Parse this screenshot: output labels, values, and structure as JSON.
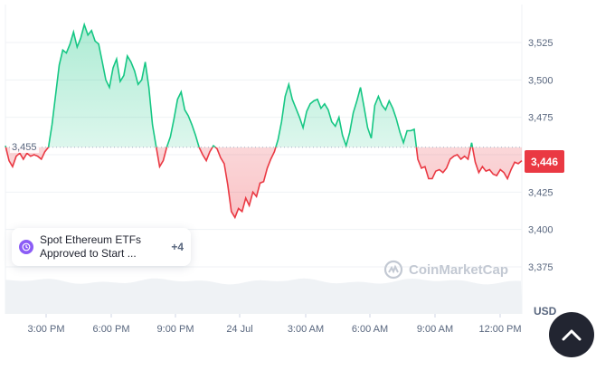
{
  "chart_data": {
    "type": "line",
    "title": "",
    "xlabel": "",
    "ylabel": "",
    "currency": "USD",
    "ylim": [
      3365,
      3550
    ],
    "yticks": [
      3375,
      3400,
      3425,
      3450,
      3475,
      3500,
      3525
    ],
    "ytick_labels": [
      "3,375",
      "3,400",
      "3,425",
      "3,450",
      "3,475",
      "3,500",
      "3,525"
    ],
    "xticks": [
      "3:00 PM",
      "6:00 PM",
      "9:00 PM",
      "24 Jul",
      "3:00 AM",
      "6:00 AM",
      "9:00 AM",
      "12:00 PM"
    ],
    "reference_price": 3455,
    "reference_label": "3,455",
    "current_price_label": "3,446",
    "series": [
      {
        "values": [
          3456,
          3446,
          3442,
          3449,
          3451,
          3447,
          3451,
          3449,
          3450,
          3449,
          3447,
          3452,
          3455,
          3470,
          3490,
          3510,
          3520,
          3518,
          3524,
          3532,
          3522,
          3528,
          3537,
          3530,
          3533,
          3526,
          3524,
          3512,
          3500,
          3495,
          3508,
          3514,
          3499,
          3503,
          3516,
          3512,
          3506,
          3497,
          3500,
          3512,
          3495,
          3470,
          3456,
          3442,
          3446,
          3455,
          3462,
          3474,
          3487,
          3492,
          3480,
          3476,
          3470,
          3463,
          3455,
          3450,
          3446,
          3452,
          3456,
          3454,
          3448,
          3444,
          3430,
          3412,
          3408,
          3414,
          3412,
          3421,
          3416,
          3425,
          3422,
          3431,
          3432,
          3441,
          3447,
          3452,
          3460,
          3472,
          3489,
          3497,
          3487,
          3481,
          3475,
          3468,
          3479,
          3484,
          3486,
          3487,
          3481,
          3484,
          3480,
          3472,
          3469,
          3475,
          3463,
          3456,
          3465,
          3478,
          3486,
          3495,
          3482,
          3468,
          3461,
          3483,
          3489,
          3483,
          3480,
          3486,
          3481,
          3474,
          3465,
          3458,
          3466,
          3466,
          3467,
          3447,
          3441,
          3442,
          3434,
          3434,
          3439,
          3440,
          3438,
          3441,
          3447,
          3449,
          3450,
          3447,
          3449,
          3447,
          3458,
          3445,
          3438,
          3442,
          3439,
          3440,
          3437,
          3436,
          3440,
          3438,
          3434,
          3440,
          3445,
          3444,
          3446
        ]
      }
    ],
    "grid": true,
    "legend": "none"
  },
  "news": {
    "text": "Spot Ethereum ETFs Approved to Start ...",
    "more": "+4",
    "icon": "clock-history-icon"
  },
  "watermark": "CoinMarketCap",
  "colors": {
    "up": "#16c784",
    "down": "#ea3943",
    "badge": "#ea3943",
    "news_icon": "#8b5cf6",
    "scroll_button": "#222531"
  }
}
